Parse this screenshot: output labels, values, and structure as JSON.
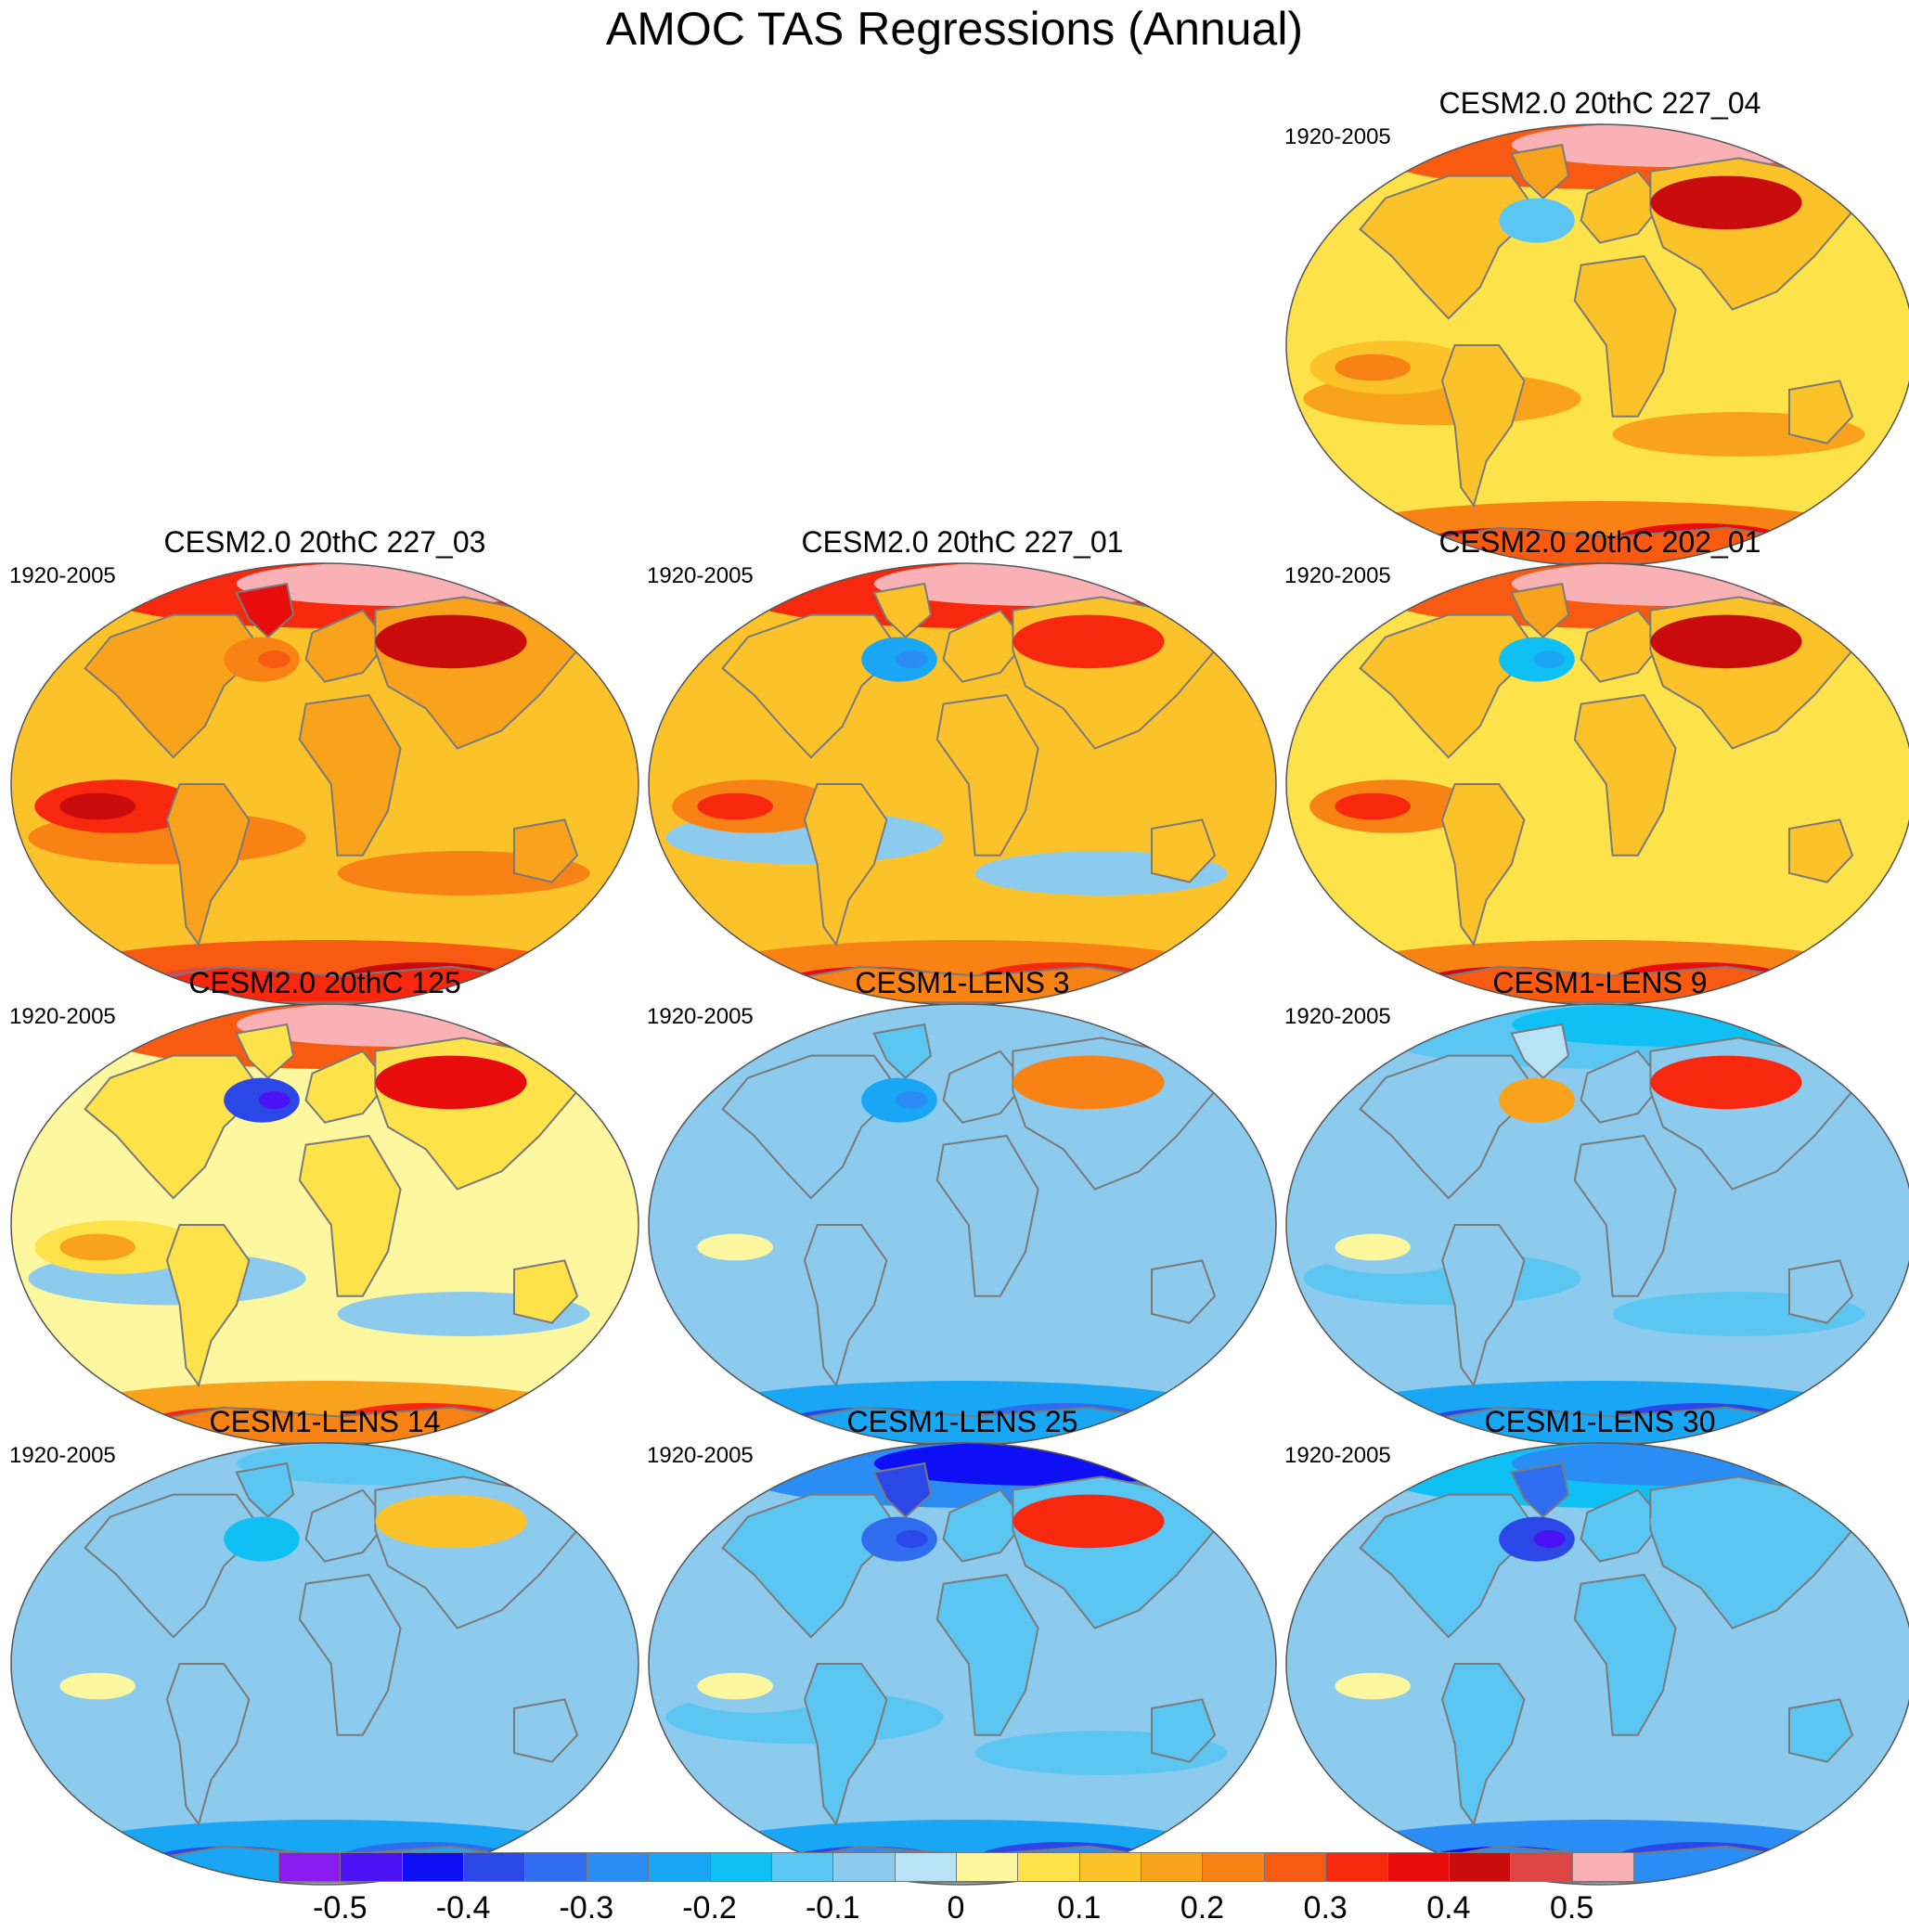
{
  "chart_data": {
    "type": "heatmap",
    "title": "AMOC TAS Regressions (Annual)",
    "layout": "4 rows x 3 columns; top-left and top-middle cells empty",
    "panels": [
      {
        "name": "CESM2.0 20thC 227_04",
        "period": "1920-2005",
        "row": 1,
        "col": 3,
        "tendency": "positive (yellow/orange), strong warming over Arctic and Southern Ocean"
      },
      {
        "name": "CESM2.0 20thC 227_03",
        "period": "1920-2005",
        "row": 2,
        "col": 1,
        "tendency": "positive, strong warming Arctic/Siberia and Antarctic coast"
      },
      {
        "name": "CESM2.0 20thC 227_01",
        "period": "1920-2005",
        "row": 2,
        "col": 2,
        "tendency": "positive, Arctic warming, cool spot south of Greenland"
      },
      {
        "name": "CESM2.0 20thC 202_01",
        "period": "1920-2005",
        "row": 2,
        "col": 3,
        "tendency": "positive, Arctic warming, Southern Ocean warming"
      },
      {
        "name": "CESM2.0 20thC 125",
        "period": "1920-2005",
        "row": 3,
        "col": 1,
        "tendency": "positive, cooling over Labrador Sea, Arctic warming"
      },
      {
        "name": "CESM1-LENS 3",
        "period": "1920-2005",
        "row": 3,
        "col": 2,
        "tendency": "weakly negative (light blue), warm Eurasia"
      },
      {
        "name": "CESM1-LENS 9",
        "period": "1920-2005",
        "row": 3,
        "col": 3,
        "tendency": "weakly negative, strong warm Siberia"
      },
      {
        "name": "CESM1-LENS 14",
        "period": "1920-2005",
        "row": 4,
        "col": 1,
        "tendency": "weakly negative, cold Southern Ocean"
      },
      {
        "name": "CESM1-LENS 25",
        "period": "1920-2005",
        "row": 4,
        "col": 2,
        "tendency": "negative, strong Arctic cooling"
      },
      {
        "name": "CESM1-LENS 30",
        "period": "1920-2005",
        "row": 4,
        "col": 3,
        "tendency": "negative, cold Greenland and Southern Ocean"
      }
    ],
    "colorbar": {
      "levels": [
        -0.55,
        -0.5,
        -0.45,
        -0.4,
        -0.35,
        -0.3,
        -0.25,
        -0.2,
        -0.15,
        -0.1,
        -0.05,
        0,
        0.05,
        0.1,
        0.15,
        0.2,
        0.25,
        0.3,
        0.35,
        0.4,
        0.45,
        0.5,
        0.55
      ],
      "colors": [
        "#8a1bf0",
        "#4a12f5",
        "#0f0ff5",
        "#2c47e8",
        "#2f6cf0",
        "#2a8cf5",
        "#18a6f5",
        "#0fc0f5",
        "#5cc6f2",
        "#8ccbee",
        "#b8e2f5",
        "#fdf7a0",
        "#fde24a",
        "#fcc22a",
        "#f9a21c",
        "#f98214",
        "#f85a12",
        "#f8280f",
        "#e80c0c",
        "#c90b0b",
        "#e04545",
        "#f9b1b6"
      ],
      "tick_labels": [
        "-0.5",
        "-0.4",
        "-0.3",
        "-0.2",
        "-0.1",
        "0",
        "0.1",
        "0.2",
        "0.3",
        "0.4",
        "0.5"
      ],
      "tick_values": [
        -0.5,
        -0.4,
        -0.3,
        -0.2,
        -0.1,
        0,
        0.1,
        0.2,
        0.3,
        0.4,
        0.5
      ]
    }
  },
  "colors": {
    "coastline": "#7a7a7a",
    "map_border": "#555555"
  }
}
